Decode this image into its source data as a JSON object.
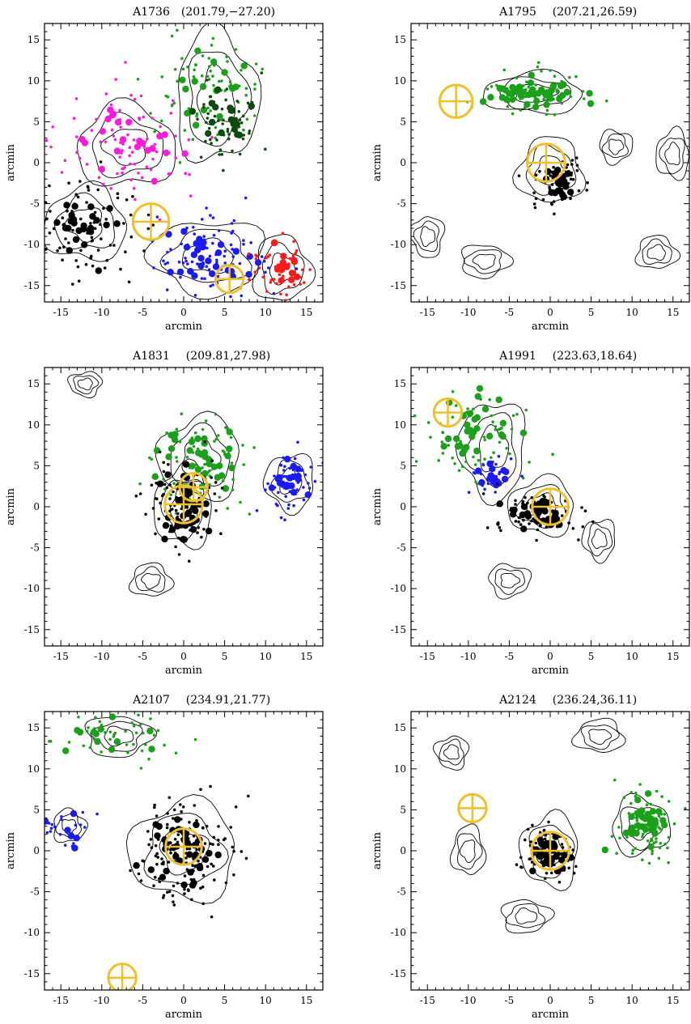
{
  "figure": {
    "colors": {
      "black": "#000000",
      "green": "#1aa01a",
      "darkgreen": "#0d4a0d",
      "magenta": "#ff1ad9",
      "blue": "#1a1aff",
      "red": "#ff1a1a",
      "marker": "#f0c02a"
    }
  },
  "chart_data": [
    {
      "type": "scatter",
      "cluster": "A1736",
      "coords": "(201.79,−27.20)",
      "xlabel": "arcmin",
      "ylabel": "arcmin",
      "xlim": [
        -17,
        17
      ],
      "ylim": [
        -17,
        17
      ],
      "xticks": [
        -15,
        -10,
        -5,
        0,
        5,
        10,
        15
      ],
      "yticks": [
        -15,
        -10,
        -5,
        0,
        5,
        10,
        15
      ],
      "markers": [
        {
          "x": -4,
          "y": -7.2,
          "r": 2.2
        },
        {
          "x": 5.6,
          "y": -14.2,
          "r": 1.7
        }
      ],
      "groups": [
        {
          "color": "magenta",
          "cx": -7,
          "cy": 2,
          "sx": 4,
          "sy": 3.5,
          "n_small": 90,
          "n_big": 22
        },
        {
          "color": "green",
          "cx": 3,
          "cy": 9.5,
          "sx": 3.5,
          "sy": 3.5,
          "n_small": 70,
          "n_big": 15
        },
        {
          "color": "darkgreen",
          "cx": 5,
          "cy": 5,
          "sx": 2.5,
          "sy": 2.5,
          "n_small": 55,
          "n_big": 18
        },
        {
          "color": "black",
          "cx": -12,
          "cy": -8,
          "sx": 3.5,
          "sy": 3.5,
          "n_small": 90,
          "n_big": 25
        },
        {
          "color": "blue",
          "cx": 3,
          "cy": -11.5,
          "sx": 4,
          "sy": 2.5,
          "n_small": 85,
          "n_big": 28
        },
        {
          "color": "red",
          "cx": 12,
          "cy": -13,
          "sx": 1.8,
          "sy": 2,
          "n_small": 45,
          "n_big": 15
        }
      ],
      "contour_centers": [
        {
          "x": -12,
          "y": -7.5,
          "rx": 5,
          "ry": 4.5
        },
        {
          "x": 4,
          "y": 8,
          "rx": 5,
          "ry": 8
        },
        {
          "x": -7,
          "y": 2,
          "rx": 6,
          "ry": 5
        },
        {
          "x": 3,
          "y": -11.5,
          "rx": 7,
          "ry": 4.5
        },
        {
          "x": 12,
          "y": -13,
          "rx": 3.5,
          "ry": 4
        }
      ]
    },
    {
      "type": "scatter",
      "cluster": "A1795",
      "coords": "(207.21,26.59)",
      "xlabel": "arcmin",
      "ylabel": "arcmin",
      "xlim": [
        -17,
        17
      ],
      "ylim": [
        -17,
        17
      ],
      "xticks": [
        -15,
        -10,
        -5,
        0,
        5,
        10,
        15
      ],
      "yticks": [
        -15,
        -10,
        -5,
        0,
        5,
        10,
        15
      ],
      "markers": [
        {
          "x": -11.5,
          "y": 7.5,
          "r": 2.0
        },
        {
          "x": -0.5,
          "y": 0,
          "r": 2.3
        }
      ],
      "groups": [
        {
          "color": "green",
          "cx": -2,
          "cy": 8.5,
          "sx": 3.5,
          "sy": 1.3,
          "n_small": 70,
          "n_big": 45
        },
        {
          "color": "black",
          "cx": 1,
          "cy": -2.5,
          "sx": 1.5,
          "sy": 1.5,
          "n_small": 55,
          "n_big": 20
        }
      ],
      "contour_centers": [
        {
          "x": -2,
          "y": 8.5,
          "rx": 6,
          "ry": 2.5
        },
        {
          "x": 0,
          "y": -1,
          "rx": 4,
          "ry": 4
        },
        {
          "x": 15,
          "y": 1,
          "rx": 2,
          "ry": 3
        },
        {
          "x": -15,
          "y": -9,
          "rx": 2,
          "ry": 2.5
        },
        {
          "x": 13,
          "y": -11,
          "rx": 2.5,
          "ry": 2
        },
        {
          "x": -8,
          "y": -12,
          "rx": 3,
          "ry": 2
        },
        {
          "x": 8,
          "y": 2,
          "rx": 2,
          "ry": 2
        }
      ]
    },
    {
      "type": "scatter",
      "cluster": "A1831",
      "coords": "(209.81,27.98)",
      "xlabel": "arcmin",
      "ylabel": "arcmin",
      "xlim": [
        -17,
        17
      ],
      "ylim": [
        -17,
        17
      ],
      "xticks": [
        -15,
        -10,
        -5,
        0,
        5,
        10,
        15
      ],
      "yticks": [
        -15,
        -10,
        -5,
        0,
        5,
        10,
        15
      ],
      "markers": [
        {
          "x": 1.2,
          "y": 2.4,
          "r": 1.7
        },
        {
          "x": 0,
          "y": 0.3,
          "r": 2.3
        }
      ],
      "groups": [
        {
          "color": "green",
          "cx": 2,
          "cy": 5.5,
          "sx": 3,
          "sy": 3,
          "n_small": 75,
          "n_big": 35
        },
        {
          "color": "black",
          "cx": 0,
          "cy": 0,
          "sx": 2,
          "sy": 3,
          "n_small": 90,
          "n_big": 40
        },
        {
          "color": "blue",
          "cx": 13,
          "cy": 3,
          "sx": 1.5,
          "sy": 1.8,
          "n_small": 45,
          "n_big": 20
        }
      ],
      "contour_centers": [
        {
          "x": 0,
          "y": 0,
          "rx": 3.5,
          "ry": 5
        },
        {
          "x": 2,
          "y": 6,
          "rx": 5,
          "ry": 5
        },
        {
          "x": 13,
          "y": 3,
          "rx": 3,
          "ry": 3.5
        },
        {
          "x": -12,
          "y": 15,
          "rx": 2,
          "ry": 1.5
        },
        {
          "x": -4,
          "y": -9,
          "rx": 2.5,
          "ry": 2
        }
      ]
    },
    {
      "type": "scatter",
      "cluster": "A1991",
      "coords": "(223.63,18.64)",
      "xlabel": "arcmin",
      "ylabel": "arcmin",
      "xlim": [
        -17,
        17
      ],
      "ylim": [
        -17,
        17
      ],
      "xticks": [
        -15,
        -10,
        -5,
        0,
        5,
        10,
        15
      ],
      "yticks": [
        -15,
        -10,
        -5,
        0,
        5,
        10,
        15
      ],
      "markers": [
        {
          "x": -12.5,
          "y": 11.5,
          "r": 1.7
        },
        {
          "x": 0,
          "y": 0,
          "r": 2.2
        }
      ],
      "groups": [
        {
          "color": "green",
          "cx": -9,
          "cy": 9,
          "sx": 3,
          "sy": 3,
          "n_small": 70,
          "n_big": 30
        },
        {
          "color": "blue",
          "cx": -7,
          "cy": 3.5,
          "sx": 1.5,
          "sy": 1.2,
          "n_small": 25,
          "n_big": 14
        },
        {
          "color": "black",
          "cx": -2,
          "cy": -1,
          "sx": 3,
          "sy": 1.3,
          "n_small": 75,
          "n_big": 30
        }
      ],
      "contour_centers": [
        {
          "x": -1,
          "y": 0,
          "rx": 4,
          "ry": 3.5
        },
        {
          "x": -7,
          "y": 7,
          "rx": 4,
          "ry": 6
        },
        {
          "x": -5,
          "y": -9,
          "rx": 2.5,
          "ry": 2
        },
        {
          "x": 6,
          "y": -4,
          "rx": 2,
          "ry": 2.5
        }
      ]
    },
    {
      "type": "scatter",
      "cluster": "A2107",
      "coords": "(234.91,21.77)",
      "xlabel": "arcmin",
      "ylabel": "arcmin",
      "xlim": [
        -17,
        17
      ],
      "ylim": [
        -17,
        17
      ],
      "xticks": [
        -15,
        -10,
        -5,
        0,
        5,
        10,
        15
      ],
      "yticks": [
        -15,
        -10,
        -5,
        0,
        5,
        10,
        15
      ],
      "markers": [
        {
          "x": 0,
          "y": 0.5,
          "r": 2.2
        },
        {
          "x": -7.5,
          "y": -15.5,
          "r": 1.7
        }
      ],
      "groups": [
        {
          "color": "green",
          "cx": -8,
          "cy": 14,
          "sx": 3.5,
          "sy": 1.5,
          "n_small": 45,
          "n_big": 12
        },
        {
          "color": "blue",
          "cx": -14,
          "cy": 3,
          "sx": 1.5,
          "sy": 1.5,
          "n_small": 20,
          "n_big": 6
        },
        {
          "color": "black",
          "cx": 0,
          "cy": 0,
          "sx": 3,
          "sy": 3,
          "n_small": 150,
          "n_big": 40
        }
      ],
      "contour_centers": [
        {
          "x": 0,
          "y": 0,
          "rx": 6.5,
          "ry": 6
        },
        {
          "x": -8,
          "y": 14,
          "rx": 4,
          "ry": 2.5
        },
        {
          "x": -14,
          "y": 3,
          "rx": 2,
          "ry": 2
        }
      ]
    },
    {
      "type": "scatter",
      "cluster": "A2124",
      "coords": "(236.24,36.11)",
      "xlabel": "arcmin",
      "ylabel": "arcmin",
      "xlim": [
        -17,
        17
      ],
      "ylim": [
        -17,
        17
      ],
      "xticks": [
        -15,
        -10,
        -5,
        0,
        5,
        10,
        15
      ],
      "yticks": [
        -15,
        -10,
        -5,
        0,
        5,
        10,
        15
      ],
      "markers": [
        {
          "x": -9.5,
          "y": 5.2,
          "r": 1.7
        },
        {
          "x": 0,
          "y": 0,
          "r": 2.3
        }
      ],
      "groups": [
        {
          "color": "green",
          "cx": 11.5,
          "cy": 3,
          "sx": 2,
          "sy": 2.5,
          "n_small": 70,
          "n_big": 35
        },
        {
          "color": "black",
          "cx": 0,
          "cy": -0.5,
          "sx": 1.8,
          "sy": 1.6,
          "n_small": 70,
          "n_big": 30
        }
      ],
      "contour_centers": [
        {
          "x": 0,
          "y": 0,
          "rx": 3.5,
          "ry": 4.5
        },
        {
          "x": 11,
          "y": 3,
          "rx": 3.5,
          "ry": 3.5
        },
        {
          "x": -10,
          "y": 0,
          "rx": 2,
          "ry": 3
        },
        {
          "x": -12,
          "y": 12,
          "rx": 2,
          "ry": 2
        },
        {
          "x": 6,
          "y": 14,
          "rx": 3,
          "ry": 2
        },
        {
          "x": -3,
          "y": -8,
          "rx": 3,
          "ry": 2
        }
      ]
    }
  ]
}
